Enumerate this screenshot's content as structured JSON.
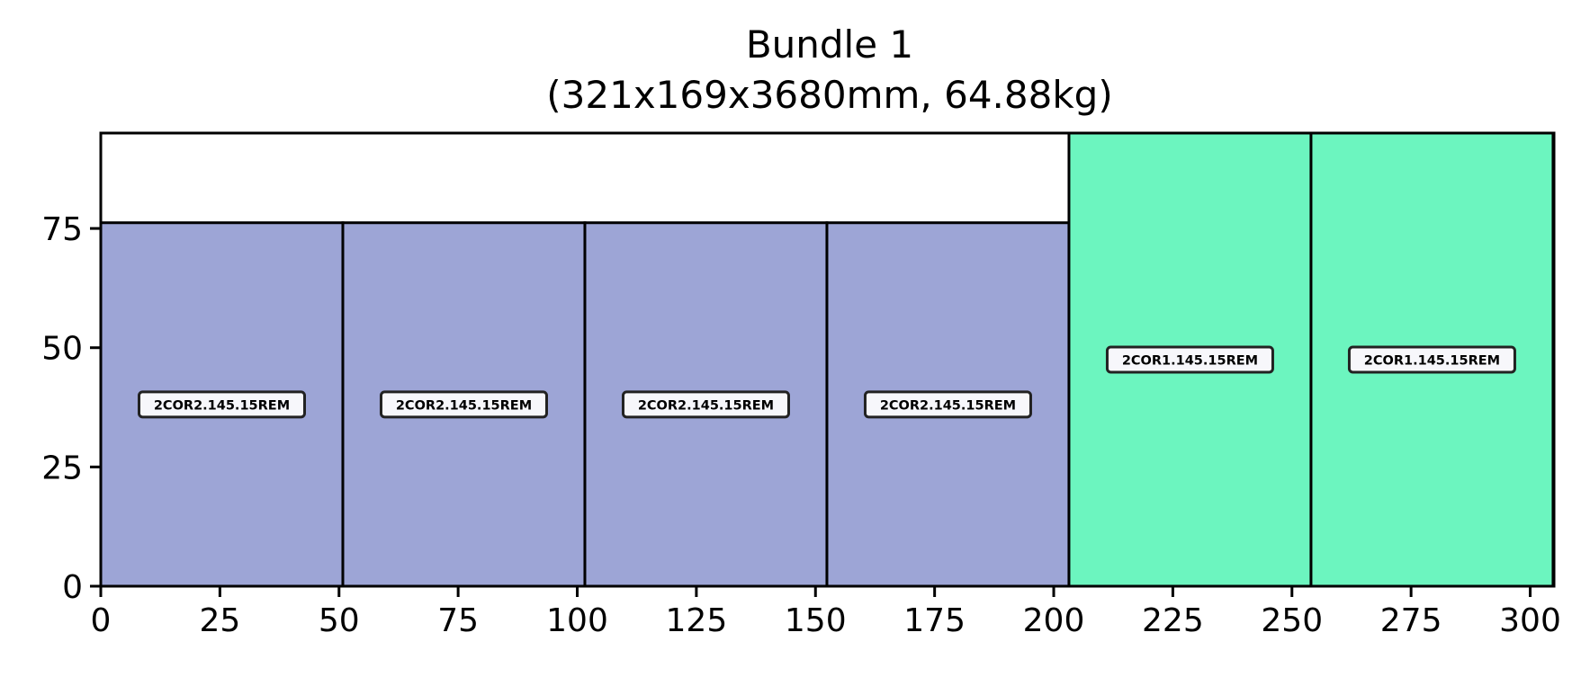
{
  "chart_data": {
    "type": "bar",
    "title_line1": "Bundle 1",
    "title_line2": "(321x169x3680mm, 64.88kg)",
    "xlabel": "",
    "ylabel": "",
    "xlim": [
      0,
      305
    ],
    "ylim": [
      0,
      95
    ],
    "x_ticks": [
      0,
      25,
      50,
      75,
      100,
      125,
      150,
      175,
      200,
      225,
      250,
      275,
      300
    ],
    "y_ticks": [
      0,
      25,
      50,
      75
    ],
    "grid": false,
    "colors": {
      "2COR2.145.15REM": "#9da5d6",
      "2COR1.145.15REM": "#6cf5bf"
    },
    "items": [
      {
        "label": "2COR2.145.15REM",
        "x": 0,
        "width": 50.8,
        "height": 76.2
      },
      {
        "label": "2COR2.145.15REM",
        "x": 50.8,
        "width": 50.8,
        "height": 76.2
      },
      {
        "label": "2COR2.145.15REM",
        "x": 101.6,
        "width": 50.8,
        "height": 76.2
      },
      {
        "label": "2COR2.145.15REM",
        "x": 152.4,
        "width": 50.8,
        "height": 76.2
      },
      {
        "label": "2COR1.145.15REM",
        "x": 203.2,
        "width": 50.8,
        "height": 95
      },
      {
        "label": "2COR1.145.15REM",
        "x": 254.0,
        "width": 50.8,
        "height": 95
      }
    ]
  }
}
